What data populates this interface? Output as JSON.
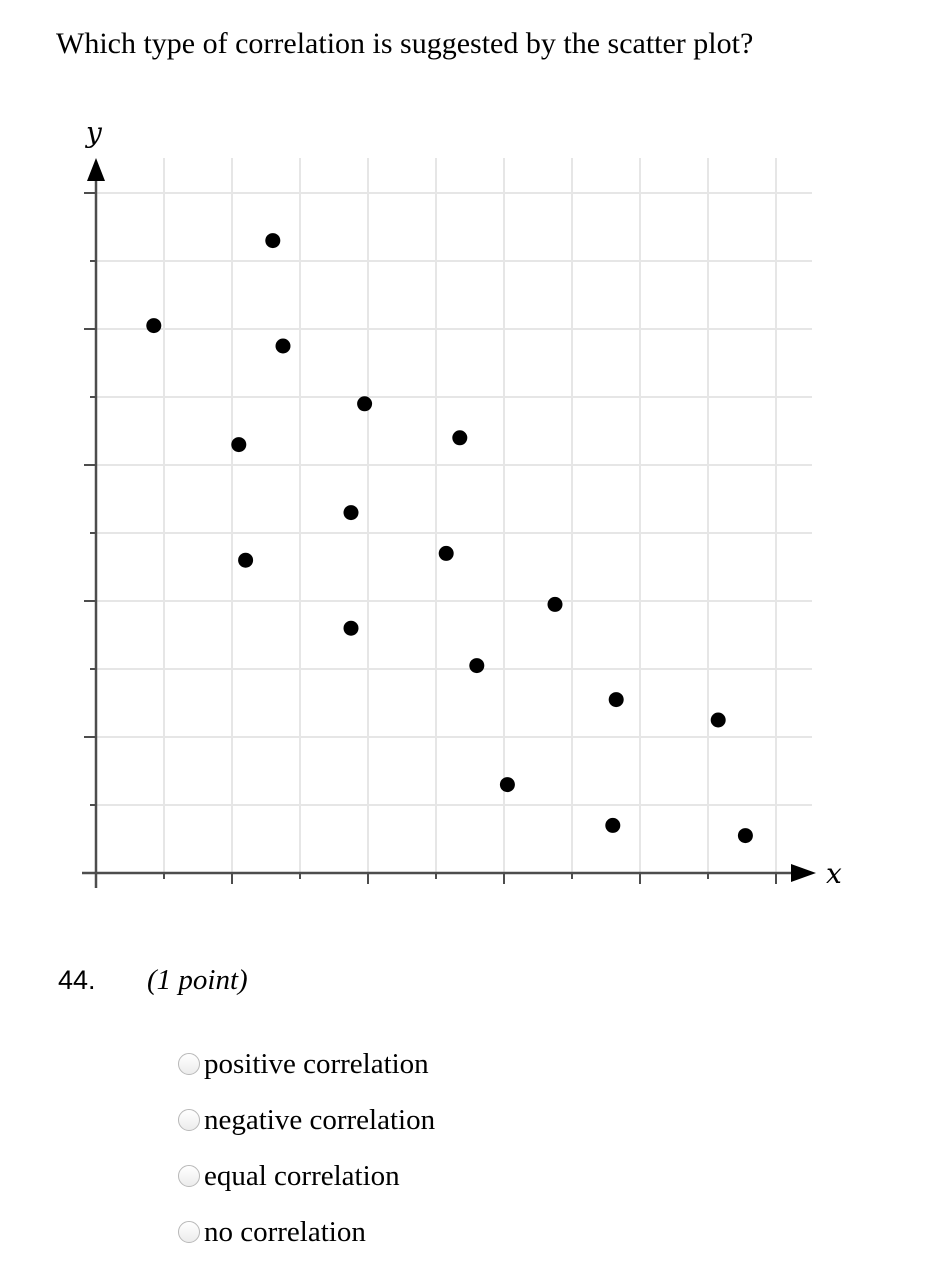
{
  "question": {
    "text": "Which type of correlation is suggested by the scatter plot?",
    "number": "44.",
    "points": "(1 point)"
  },
  "chart_data": {
    "type": "scatter",
    "xlabel": "x",
    "ylabel": "y",
    "xlim": [
      0,
      10
    ],
    "ylim": [
      0,
      10.5
    ],
    "grid": true,
    "tick_labels": false,
    "series": [
      {
        "points": [
          {
            "x": 0.85,
            "y": 8.05
          },
          {
            "x": 2.6,
            "y": 9.3
          },
          {
            "x": 2.75,
            "y": 7.75
          },
          {
            "x": 2.1,
            "y": 6.3
          },
          {
            "x": 2.2,
            "y": 4.6
          },
          {
            "x": 3.95,
            "y": 6.9
          },
          {
            "x": 3.75,
            "y": 5.3
          },
          {
            "x": 3.75,
            "y": 3.6
          },
          {
            "x": 5.35,
            "y": 6.4
          },
          {
            "x": 5.15,
            "y": 4.7
          },
          {
            "x": 5.6,
            "y": 3.05
          },
          {
            "x": 6.05,
            "y": 1.3
          },
          {
            "x": 6.75,
            "y": 3.95
          },
          {
            "x": 7.65,
            "y": 2.55
          },
          {
            "x": 7.6,
            "y": 0.7
          },
          {
            "x": 9.15,
            "y": 2.25
          },
          {
            "x": 9.55,
            "y": 0.55
          }
        ]
      }
    ]
  },
  "options": [
    {
      "label": "positive correlation"
    },
    {
      "label": "negative correlation"
    },
    {
      "label": "equal correlation"
    },
    {
      "label": "no correlation"
    }
  ]
}
